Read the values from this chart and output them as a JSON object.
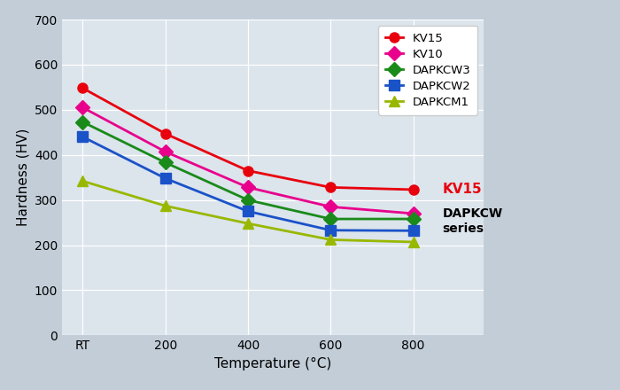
{
  "x_labels": [
    "RT",
    "200",
    "400",
    "600",
    "800"
  ],
  "x_positions": [
    0,
    1,
    2,
    3,
    4
  ],
  "series": [
    {
      "label": "KV15",
      "color": "#e8000d",
      "marker": "o",
      "markersize": 8,
      "values": [
        548,
        447,
        365,
        328,
        323
      ]
    },
    {
      "label": "KV10",
      "color": "#e8008c",
      "marker": "D",
      "markersize": 8,
      "values": [
        505,
        407,
        328,
        285,
        270
      ]
    },
    {
      "label": "DAPKCW3",
      "color": "#1a8a1a",
      "marker": "D",
      "markersize": 8,
      "values": [
        473,
        383,
        300,
        258,
        258
      ]
    },
    {
      "label": "DAPKCW2",
      "color": "#1a52c8",
      "marker": "s",
      "markersize": 8,
      "values": [
        440,
        348,
        275,
        233,
        232
      ]
    },
    {
      "label": "DAPKCM1",
      "color": "#98b800",
      "marker": "^",
      "markersize": 8,
      "values": [
        342,
        287,
        248,
        212,
        207
      ]
    }
  ],
  "ylabel": "Hardness (HV)",
  "xlabel": "Temperature (°C)",
  "ylim": [
    0,
    700
  ],
  "yticks": [
    0,
    100,
    200,
    300,
    400,
    500,
    600,
    700
  ],
  "bg_plot": "#dce4ec",
  "bg_outer": "#c2cdd8",
  "annotation_kv15": "KV15",
  "annotation_kv15_color": "#e8000d",
  "annotation_dapkcw": "DAPKCW\nseries",
  "annotation_dapkcw_color": "#000000",
  "linewidth": 2.0,
  "legend_loc": "upper right"
}
